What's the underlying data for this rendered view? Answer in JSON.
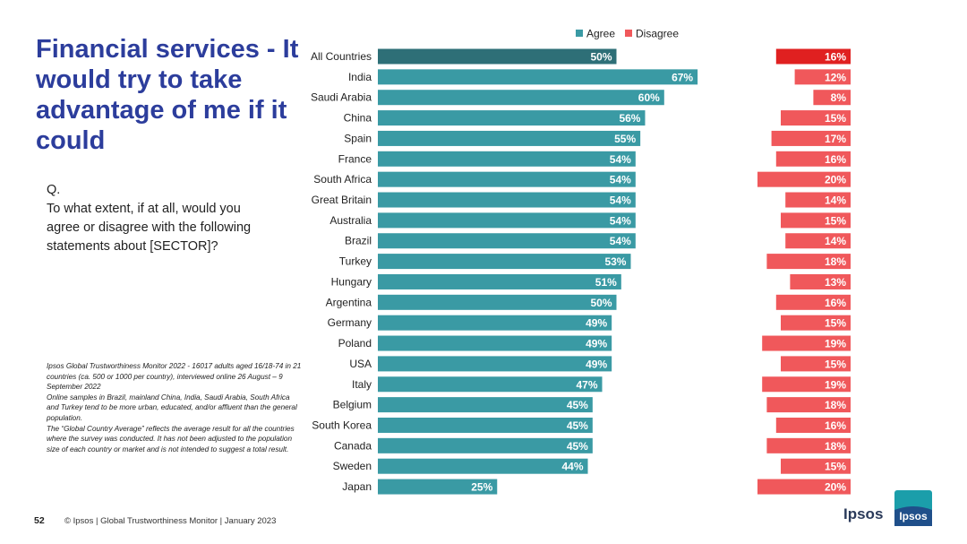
{
  "slide": {
    "title": "Financial services - It would try to take advantage of me if it could",
    "question_label": "Q.",
    "question_text": "To what extent, if at all, would you agree or disagree with the following statements about [SECTOR]?",
    "notes": [
      "Ipsos Global Trustworthiness Monitor 2022 - 16017 adults aged 16/18-74 in 21 countries (ca. 500 or 1000 per country), interviewed online 26 August – 9 September 2022",
      "Online samples in Brazil, mainland China, India, Saudi Arabia, South Africa and Turkey tend to be more urban, educated, and/or affluent than the general population.",
      "The “Global Country Average” reflects the average result for all the countries where the survey was conducted. It has not been adjusted to the population size of each country or market and is not intended to suggest a total result."
    ],
    "page_number": "52",
    "footer": "© Ipsos | Global Trustworthiness Monitor | January 2023",
    "brand_name": "Ipsos",
    "logo_text": "Ipsos"
  },
  "colors": {
    "agree": "#3a9aa4",
    "agree_highlight": "#2e6f77",
    "disagree": "#f0585b",
    "disagree_highlight": "#e02020",
    "title": "#2c3d9c",
    "logo": "#1b9eaa"
  },
  "chart_data": {
    "type": "bar",
    "orientation": "horizontal",
    "legend": [
      "Agree",
      "Disagree"
    ],
    "legend_position": "top-center",
    "categories": [
      "All Countries",
      "India",
      "Saudi Arabia",
      "China",
      "Spain",
      "France",
      "South Africa",
      "Great Britain",
      "Australia",
      "Brazil",
      "Turkey",
      "Hungary",
      "Argentina",
      "Germany",
      "Poland",
      "USA",
      "Italy",
      "Belgium",
      "South Korea",
      "Canada",
      "Sweden",
      "Japan"
    ],
    "series": [
      {
        "name": "Agree",
        "values": [
          50,
          67,
          60,
          56,
          55,
          54,
          54,
          54,
          54,
          54,
          53,
          51,
          50,
          49,
          49,
          49,
          47,
          45,
          45,
          45,
          44,
          25
        ],
        "labels": [
          "50%",
          "67%",
          "60%",
          "56%",
          "55%",
          "54%",
          "54%",
          "54%",
          "54%",
          "54%",
          "53%",
          "51%",
          "50%",
          "49%",
          "49%",
          "49%",
          "47%",
          "45%",
          "45%",
          "45%",
          "44%",
          "25%"
        ]
      },
      {
        "name": "Disagree",
        "values": [
          16,
          12,
          8,
          15,
          17,
          16,
          20,
          14,
          15,
          14,
          18,
          13,
          16,
          15,
          19,
          15,
          19,
          18,
          16,
          18,
          15,
          20
        ],
        "labels": [
          "16%",
          "12%",
          "8%",
          "15%",
          "17%",
          "16%",
          "20%",
          "14%",
          "15%",
          "14%",
          "18%",
          "13%",
          "16%",
          "15%",
          "19%",
          "15%",
          "19%",
          "18%",
          "16%",
          "18%",
          "15%",
          "20%"
        ]
      }
    ],
    "highlight_index": 0
  }
}
